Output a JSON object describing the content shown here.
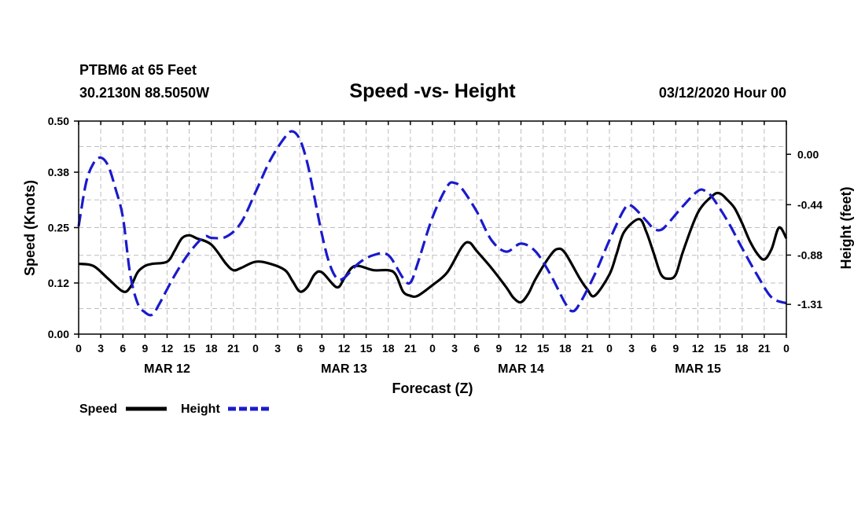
{
  "header": {
    "station": "PTBM6 at 65 Feet",
    "coords": "30.2130N 88.5050W",
    "datetime": "03/12/2020 Hour 00"
  },
  "colors": {
    "speed": "#000000",
    "height": "#1a1acc",
    "grid": "#bdbdbd"
  },
  "chart_data": {
    "type": "line",
    "title": "Speed -vs- Height",
    "xlabel": "Forecast (Z)",
    "ylabel": "Speed (Knots)",
    "y2label": "Height (feet)",
    "x_hours_range": [
      0,
      96
    ],
    "ylim": [
      0.0,
      0.5
    ],
    "y2lim": [
      -1.57,
      0.29
    ],
    "y_ticks": [
      "0.00",
      "0.12",
      "0.25",
      "0.38",
      "0.50"
    ],
    "y2_ticks": [
      "0.00",
      "-0.44",
      "-0.88",
      "-1.31"
    ],
    "y2_tick_values": [
      0.0,
      -0.44,
      -0.88,
      -1.31
    ],
    "x_tick_labels": [
      "0",
      "3",
      "6",
      "9",
      "12",
      "15",
      "18",
      "21",
      "0",
      "3",
      "6",
      "9",
      "12",
      "15",
      "18",
      "21",
      "0",
      "3",
      "6",
      "9",
      "12",
      "15",
      "18",
      "21",
      "0",
      "3",
      "6",
      "9",
      "12",
      "15",
      "18",
      "21",
      "0"
    ],
    "day_labels": [
      {
        "label": "MAR 12",
        "hour": 12
      },
      {
        "label": "MAR 13",
        "hour": 36
      },
      {
        "label": "MAR 14",
        "hour": 60
      },
      {
        "label": "MAR 15",
        "hour": 84
      }
    ],
    "legend": [
      {
        "name": "Speed",
        "style": "solid"
      },
      {
        "name": "Height",
        "style": "dashed"
      }
    ],
    "series": [
      {
        "name": "Speed",
        "axis": "left",
        "points": [
          [
            0,
            0.165
          ],
          [
            2,
            0.16
          ],
          [
            4,
            0.13
          ],
          [
            6,
            0.1
          ],
          [
            7,
            0.11
          ],
          [
            8,
            0.145
          ],
          [
            9,
            0.16
          ],
          [
            10,
            0.165
          ],
          [
            12,
            0.17
          ],
          [
            13,
            0.195
          ],
          [
            14,
            0.225
          ],
          [
            15,
            0.232
          ],
          [
            16,
            0.225
          ],
          [
            18,
            0.21
          ],
          [
            20,
            0.165
          ],
          [
            21,
            0.15
          ],
          [
            22,
            0.155
          ],
          [
            24,
            0.17
          ],
          [
            26,
            0.165
          ],
          [
            28,
            0.15
          ],
          [
            29,
            0.125
          ],
          [
            30,
            0.1
          ],
          [
            31,
            0.11
          ],
          [
            32,
            0.14
          ],
          [
            33,
            0.145
          ],
          [
            35,
            0.11
          ],
          [
            36,
            0.13
          ],
          [
            37,
            0.155
          ],
          [
            38,
            0.16
          ],
          [
            40,
            0.15
          ],
          [
            42,
            0.15
          ],
          [
            43,
            0.14
          ],
          [
            44,
            0.1
          ],
          [
            45,
            0.09
          ],
          [
            46,
            0.09
          ],
          [
            48,
            0.115
          ],
          [
            50,
            0.145
          ],
          [
            52,
            0.205
          ],
          [
            53,
            0.215
          ],
          [
            54,
            0.195
          ],
          [
            56,
            0.155
          ],
          [
            58,
            0.11
          ],
          [
            59,
            0.085
          ],
          [
            60,
            0.075
          ],
          [
            61,
            0.095
          ],
          [
            62,
            0.13
          ],
          [
            64,
            0.185
          ],
          [
            65,
            0.2
          ],
          [
            66,
            0.19
          ],
          [
            68,
            0.13
          ],
          [
            69,
            0.105
          ],
          [
            70,
            0.09
          ],
          [
            72,
            0.14
          ],
          [
            73,
            0.19
          ],
          [
            74,
            0.24
          ],
          [
            76,
            0.27
          ],
          [
            77,
            0.24
          ],
          [
            78,
            0.19
          ],
          [
            79,
            0.14
          ],
          [
            80,
            0.13
          ],
          [
            81,
            0.14
          ],
          [
            82,
            0.195
          ],
          [
            84,
            0.285
          ],
          [
            86,
            0.325
          ],
          [
            87,
            0.33
          ],
          [
            88,
            0.315
          ],
          [
            89,
            0.295
          ],
          [
            90,
            0.26
          ],
          [
            91,
            0.22
          ],
          [
            92,
            0.19
          ],
          [
            93,
            0.175
          ],
          [
            94,
            0.2
          ],
          [
            95,
            0.25
          ],
          [
            96,
            0.225
          ]
        ]
      },
      {
        "name": "Height",
        "axis": "right",
        "points": [
          [
            0,
            -0.63
          ],
          [
            1,
            -0.25
          ],
          [
            2,
            -0.08
          ],
          [
            3,
            -0.03
          ],
          [
            4,
            -0.1
          ],
          [
            5,
            -0.3
          ],
          [
            6,
            -0.55
          ],
          [
            7,
            -1.05
          ],
          [
            8,
            -1.3
          ],
          [
            9,
            -1.38
          ],
          [
            10,
            -1.4
          ],
          [
            11,
            -1.3
          ],
          [
            13,
            -1.06
          ],
          [
            15,
            -0.86
          ],
          [
            17,
            -0.72
          ],
          [
            18,
            -0.73
          ],
          [
            20,
            -0.72
          ],
          [
            22,
            -0.6
          ],
          [
            24,
            -0.33
          ],
          [
            26,
            -0.05
          ],
          [
            28,
            0.15
          ],
          [
            29,
            0.2
          ],
          [
            30,
            0.13
          ],
          [
            31,
            -0.07
          ],
          [
            32,
            -0.38
          ],
          [
            33,
            -0.7
          ],
          [
            34,
            -0.95
          ],
          [
            35,
            -1.08
          ],
          [
            36,
            -1.08
          ],
          [
            38,
            -0.95
          ],
          [
            40,
            -0.88
          ],
          [
            42,
            -0.88
          ],
          [
            44,
            -1.08
          ],
          [
            45,
            -1.12
          ],
          [
            46,
            -0.95
          ],
          [
            48,
            -0.55
          ],
          [
            50,
            -0.28
          ],
          [
            51,
            -0.25
          ],
          [
            52,
            -0.3
          ],
          [
            54,
            -0.5
          ],
          [
            56,
            -0.75
          ],
          [
            58,
            -0.85
          ],
          [
            60,
            -0.78
          ],
          [
            62,
            -0.85
          ],
          [
            64,
            -1.05
          ],
          [
            66,
            -1.3
          ],
          [
            67,
            -1.37
          ],
          [
            68,
            -1.3
          ],
          [
            70,
            -1.05
          ],
          [
            72,
            -0.75
          ],
          [
            74,
            -0.48
          ],
          [
            75,
            -0.45
          ],
          [
            77,
            -0.58
          ],
          [
            78,
            -0.65
          ],
          [
            79,
            -0.66
          ],
          [
            80,
            -0.6
          ],
          [
            82,
            -0.45
          ],
          [
            84,
            -0.32
          ],
          [
            85,
            -0.32
          ],
          [
            86,
            -0.38
          ],
          [
            88,
            -0.58
          ],
          [
            90,
            -0.82
          ],
          [
            92,
            -1.05
          ],
          [
            94,
            -1.25
          ],
          [
            96,
            -1.3
          ]
        ]
      }
    ]
  }
}
